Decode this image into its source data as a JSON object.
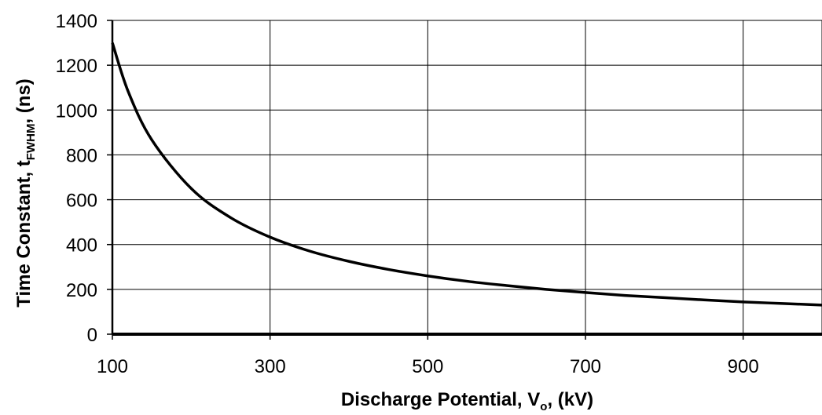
{
  "chart_data": {
    "type": "line",
    "title": "",
    "xlabel": {
      "main": "Discharge Potential, V",
      "sub": "o",
      "tail": ", (kV)"
    },
    "ylabel": {
      "main": "Time Constant, t",
      "sub": "FWHM",
      "tail": ", (ns)"
    },
    "xlim": [
      100,
      1000
    ],
    "ylim": [
      0,
      1400
    ],
    "x_ticks": [
      100,
      300,
      500,
      700,
      900
    ],
    "y_ticks": [
      0,
      200,
      400,
      600,
      800,
      1000,
      1200,
      1400
    ],
    "x_tick_labels": [
      "100",
      "300",
      "500",
      "700",
      "900"
    ],
    "y_tick_labels": [
      "0",
      "200",
      "400",
      "600",
      "800",
      "1000",
      "1200",
      "1400"
    ],
    "grid": true,
    "legend": "none",
    "series": [
      {
        "color": "#000000",
        "x": [
          100,
          120,
          150,
          200,
          250,
          300,
          350,
          400,
          450,
          500,
          550,
          600,
          650,
          700,
          750,
          800,
          850,
          900,
          950,
          1000
        ],
        "y": [
          1300,
          1083,
          867,
          650,
          520,
          433,
          371,
          325,
          289,
          260,
          236,
          217,
          200,
          186,
          173,
          163,
          153,
          144,
          137,
          130
        ]
      }
    ]
  }
}
